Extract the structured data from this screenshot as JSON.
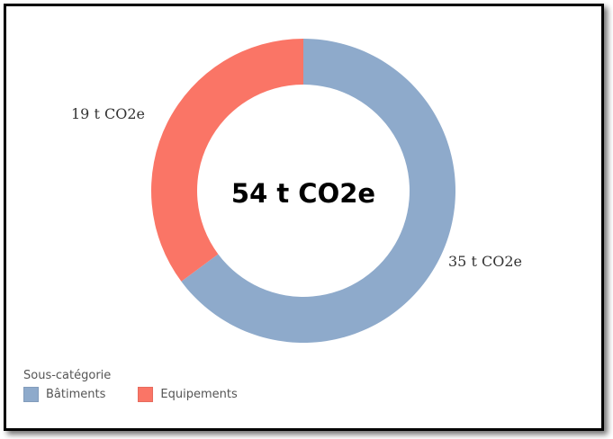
{
  "chart_data": {
    "type": "pie",
    "variant": "donut",
    "center_text": "54 t CO2e",
    "legend_title": "Sous-catégorie",
    "legend_position": "bottom-left",
    "slices": [
      {
        "name": "Bâtiments",
        "value": 35,
        "label": "35 t CO2e",
        "color": "#8eaacb"
      },
      {
        "name": "Equipements",
        "value": 19,
        "label": "19 t CO2e",
        "color": "#fa7566"
      }
    ]
  }
}
